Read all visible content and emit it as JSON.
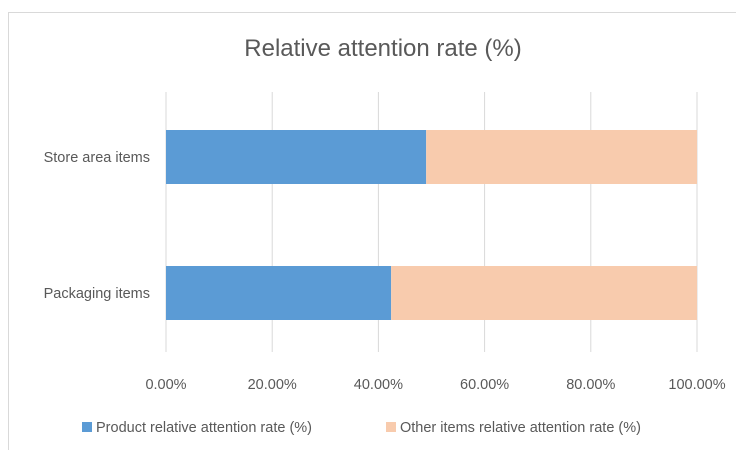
{
  "chart_data": {
    "type": "bar",
    "orientation": "horizontal",
    "stacking": "percent",
    "title": "Relative attention rate (%)",
    "categories": [
      "Store area items",
      "Packaging items"
    ],
    "series": [
      {
        "name": "Product relative attention rate (%)",
        "values": [
          49,
          42.4
        ],
        "color": "#5b9bd5"
      },
      {
        "name": "Other items relative attention rate (%)",
        "values": [
          51,
          57.6
        ],
        "color": "#f8cbad"
      }
    ],
    "xlim": [
      0,
      100
    ],
    "xticks": [
      "0.00%",
      "20.00%",
      "40.00%",
      "60.00%",
      "80.00%",
      "100.00%"
    ],
    "grid": true,
    "legend_position": "bottom"
  }
}
